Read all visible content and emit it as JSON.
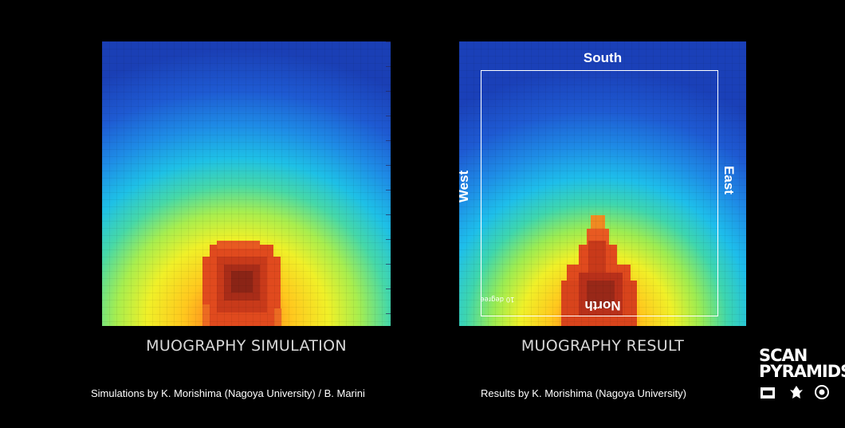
{
  "simulation": {
    "caption": "MUOGRAPHY SIMULATION",
    "credit": "Simulations by K. Morishima (Nagoya University) / B. Marini"
  },
  "result": {
    "caption": "MUOGRAPHY RESULT",
    "credit": "Results by K. Morishima (Nagoya University)",
    "labels": {
      "south": "South",
      "north": "North",
      "west": "West",
      "east": "East",
      "degree": "10 degree"
    }
  },
  "logo": {
    "line1": "SCAN",
    "line2": "PYRAMIDS"
  },
  "colors": {
    "background": "#000000",
    "heat_high": "#c83218",
    "heat_mid": "#f0f028",
    "heat_low": "#1a3fb5"
  }
}
